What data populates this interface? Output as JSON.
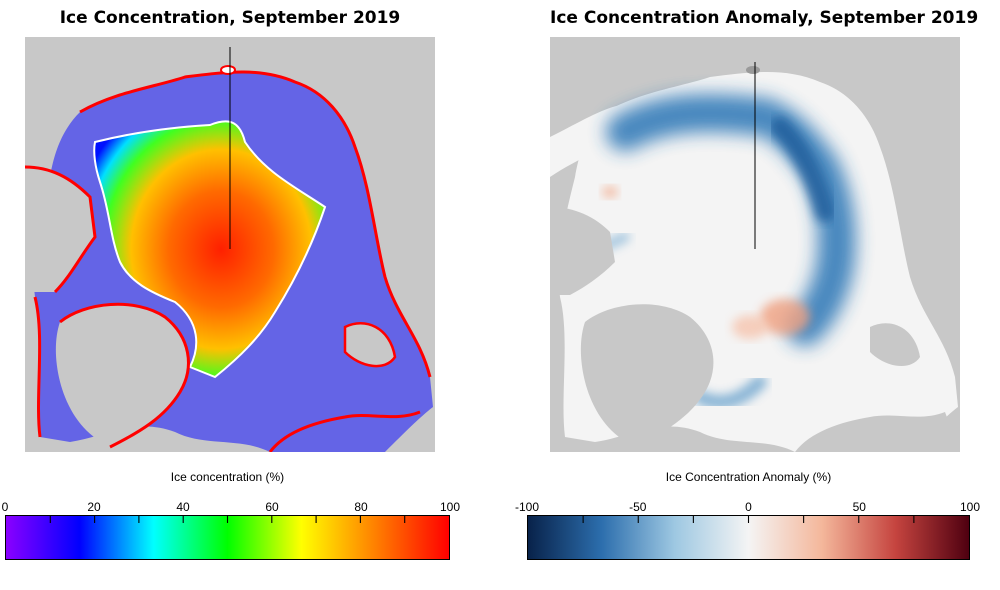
{
  "left": {
    "title": "Ice Concentration, September 2019",
    "colorbar": {
      "label": "Ice concentration (%)",
      "ticks": [
        "0",
        "20",
        "40",
        "60",
        "80",
        "100"
      ],
      "min": 0,
      "max": 100,
      "colors": [
        "#8a00ff",
        "#0000ff",
        "#00ffff",
        "#00ff00",
        "#ffff00",
        "#ff8000",
        "#ff0000"
      ]
    },
    "colors": {
      "land": "#c8c8c8",
      "ocean": "#6464e6",
      "coast": "#ff0000"
    }
  },
  "right": {
    "title": "Ice Concentration Anomaly, September 2019",
    "colorbar": {
      "label": "Ice Concentration Anomaly (%)",
      "ticks": [
        "-100",
        "-50",
        "0",
        "50",
        "100"
      ],
      "min": -100,
      "max": 100,
      "colors": [
        "#08224a",
        "#2c6ead",
        "#9ec8e2",
        "#f4f4f4",
        "#f4b79b",
        "#c5443f",
        "#4f0010"
      ]
    },
    "colors": {
      "land": "#c8c8c8",
      "background": "#f4f4f4"
    }
  }
}
